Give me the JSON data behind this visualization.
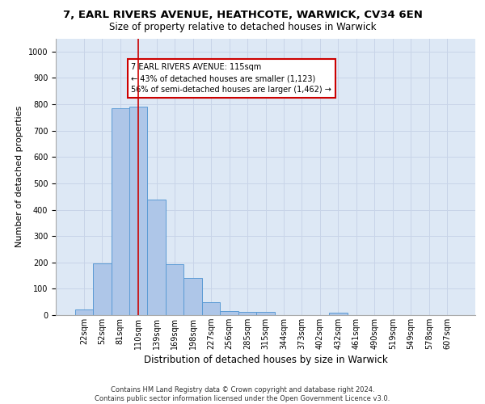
{
  "title1": "7, EARL RIVERS AVENUE, HEATHCOTE, WARWICK, CV34 6EN",
  "title2": "Size of property relative to detached houses in Warwick",
  "xlabel": "Distribution of detached houses by size in Warwick",
  "ylabel": "Number of detached properties",
  "categories": [
    "22sqm",
    "52sqm",
    "81sqm",
    "110sqm",
    "139sqm",
    "169sqm",
    "198sqm",
    "227sqm",
    "256sqm",
    "285sqm",
    "315sqm",
    "344sqm",
    "373sqm",
    "402sqm",
    "432sqm",
    "461sqm",
    "490sqm",
    "519sqm",
    "549sqm",
    "578sqm",
    "607sqm"
  ],
  "values": [
    20,
    195,
    785,
    790,
    438,
    192,
    140,
    50,
    15,
    13,
    13,
    0,
    0,
    0,
    10,
    0,
    0,
    0,
    0,
    0,
    0
  ],
  "bar_color": "#aec6e8",
  "bar_edgecolor": "#5b9bd5",
  "vline_x": 3.0,
  "vline_color": "#cc0000",
  "annotation_text": "7 EARL RIVERS AVENUE: 115sqm\n← 43% of detached houses are smaller (1,123)\n56% of semi-detached houses are larger (1,462) →",
  "annotation_box_color": "#cc0000",
  "ylim": [
    0,
    1050
  ],
  "grid_color": "#c8d4e8",
  "background_color": "#dde8f5",
  "footer": "Contains HM Land Registry data © Crown copyright and database right 2024.\nContains public sector information licensed under the Open Government Licence v3.0.",
  "title1_fontsize": 9.5,
  "title2_fontsize": 8.5,
  "ylabel_fontsize": 8,
  "xlabel_fontsize": 8.5,
  "tick_fontsize": 7,
  "annotation_fontsize": 7,
  "footer_fontsize": 6
}
